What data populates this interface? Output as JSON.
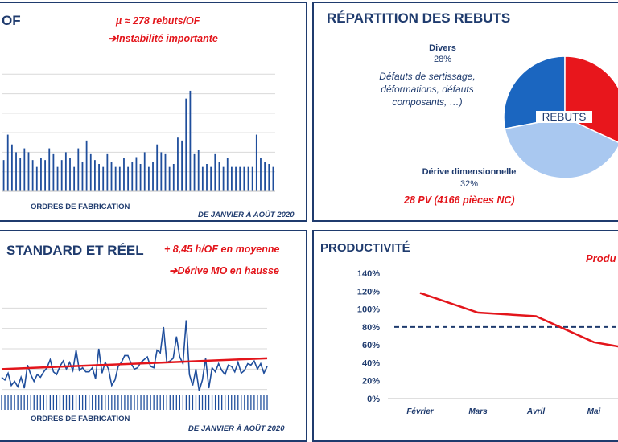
{
  "panel1": {
    "title": "OF",
    "note1": "µ ≈ 278 rebuts/OF",
    "note2": "➔Instabilité importante",
    "xlabel": "ORDRES DE FABRICATION",
    "period": "DE JANVIER À AOÛT 2020"
  },
  "panel2": {
    "title": "RÉPARTITION DES REBUTS",
    "divers_label": "Divers",
    "divers_pct": "28%",
    "divers_desc_1": "Défauts de sertissage,",
    "divers_desc_2": "déformations, défauts",
    "divers_desc_3": "composants, …)",
    "derive_label": "Dérive dimensionnelle",
    "derive_pct": "32%",
    "center_label": "REBUTS",
    "pv_note": "28 PV (4166 pièces NC)"
  },
  "panel3": {
    "title": "STANDARD ET RÉEL",
    "note1": "+ 8,45 h/OF en moyenne",
    "note2": "➔Dérive MO en hausse",
    "xlabel": "ORDRES DE FABRICATION",
    "period": "DE JANVIER À AOÛT 2020"
  },
  "panel4": {
    "title": "PRODUCTIVITÉ",
    "note": "Produ"
  },
  "colors": {
    "navy": "#1f3b6e",
    "bar_blue": "#1f4e9c",
    "red": "#e3151b",
    "pie_light": "#a9c8f0",
    "pie_blue": "#1b66c0",
    "pie_red": "#e8161c"
  },
  "chart_data": [
    {
      "type": "bar",
      "title": "",
      "xlabel": "ORDRES DE FABRICATION",
      "values": [
        32,
        58,
        48,
        40,
        34,
        44,
        40,
        32,
        25,
        34,
        32,
        44,
        38,
        25,
        32,
        40,
        34,
        25,
        44,
        30,
        52,
        38,
        32,
        28,
        25,
        38,
        30,
        25,
        25,
        34,
        25,
        30,
        35,
        28,
        40,
        25,
        30,
        48,
        40,
        38,
        25,
        28,
        55,
        52,
        95,
        103,
        38,
        42,
        25,
        28,
        25,
        38,
        30,
        25,
        34,
        25,
        25,
        25,
        25,
        25,
        25,
        58,
        34,
        30,
        28,
        25
      ],
      "ylim": [
        0,
        140
      ],
      "grid": true
    },
    {
      "type": "pie",
      "slices": [
        {
          "label": "Divers",
          "value": 28
        },
        {
          "label": "Dérive dimensionnelle",
          "value": 32
        },
        {
          "label": "",
          "value": 40
        }
      ]
    },
    {
      "type": "line",
      "xlabel": "ORDRES DE FABRICATION",
      "series": [
        {
          "name": "",
          "values": [
            24,
            22,
            27,
            18,
            21,
            17,
            24,
            16,
            33,
            26,
            21,
            26,
            24,
            28,
            31,
            37,
            28,
            26,
            32,
            36,
            30,
            35,
            29,
            44,
            29,
            31,
            28,
            28,
            31,
            23,
            45,
            27,
            35,
            30,
            18,
            22,
            32,
            35,
            40,
            40,
            34,
            30,
            31,
            35,
            37,
            39,
            32,
            31,
            44,
            42,
            61,
            35,
            36,
            38,
            54,
            39,
            34,
            66,
            26,
            18,
            30,
            14,
            22,
            38,
            16,
            31,
            28,
            34,
            29,
            26,
            33,
            32,
            28,
            35,
            27,
            29,
            34,
            33,
            36,
            30,
            34,
            27,
            32
          ]
        }
      ],
      "trend": [
        30,
        38
      ],
      "ylim": [
        0,
        90
      ]
    },
    {
      "type": "line",
      "categories": [
        "Février",
        "Mars",
        "Avril",
        "Mai"
      ],
      "series": [
        {
          "name": "",
          "values": [
            118,
            96,
            92,
            63
          ]
        }
      ],
      "reference": 80,
      "yticks": [
        "0%",
        "20%",
        "40%",
        "60%",
        "80%",
        "100%",
        "120%",
        "140%"
      ],
      "ylim": [
        0,
        140
      ]
    }
  ]
}
